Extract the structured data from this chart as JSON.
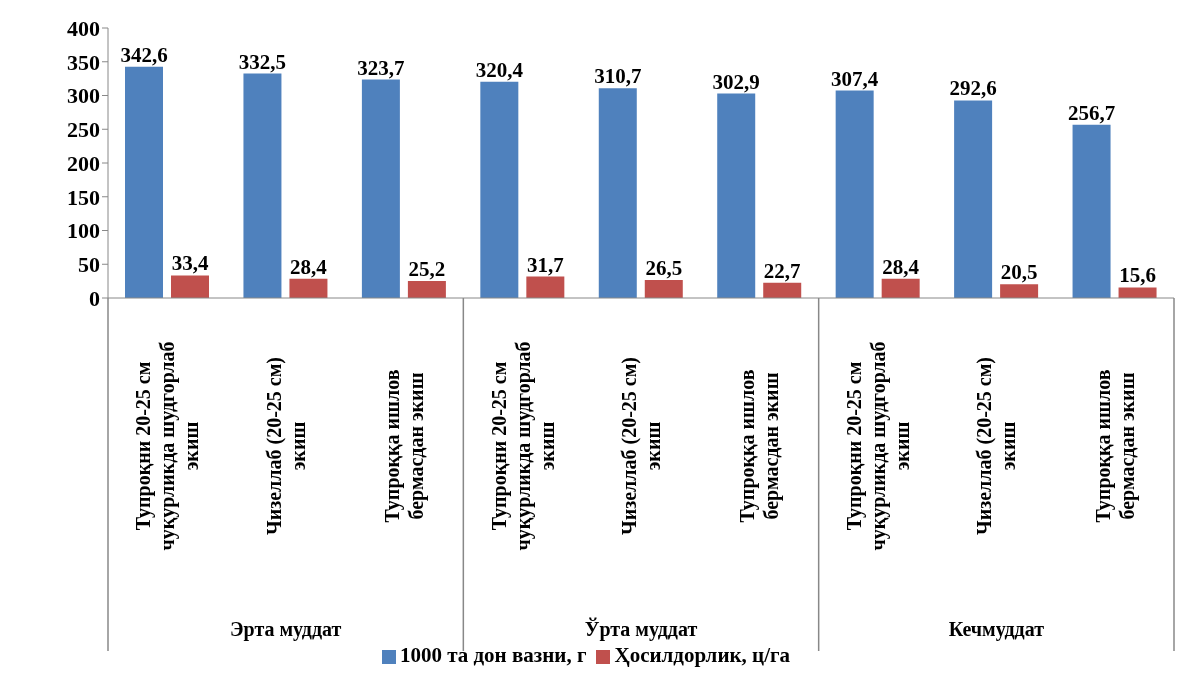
{
  "chart_data": {
    "type": "bar",
    "categories": [
      "Тупроқни 20-25 см чуқурликда шудгорлаб экиш",
      "Чизеллаб (20-25 см) экиш",
      "Тупроққа ишлов бермасдан экиш",
      "Тупроқни 20-25 см чуқурликда шудгорлаб экиш",
      "Чизеллаб (20-25 см) экиш",
      "Тупроққа ишлов бермасдан экиш",
      "Тупроқни 20-25 см чуқурликда шудгорлаб экиш",
      "Чизеллаб (20-25 см) экиш",
      "Тупроққа ишлов бермасдан экиш"
    ],
    "series": [
      {
        "name": "1000 та дон вазни, г",
        "color": "#4f81bd",
        "values": [
          342.6,
          332.5,
          323.7,
          320.4,
          310.7,
          302.9,
          307.4,
          292.6,
          256.7
        ],
        "value_labels": [
          "342,6",
          "332,5",
          "323,7",
          "320,4",
          "310,7",
          "302,9",
          "307,4",
          "292,6",
          "256,7"
        ]
      },
      {
        "name": "Ҳосилдорлик, ц/га",
        "color": "#c0504d",
        "values": [
          33.4,
          28.4,
          25.2,
          31.7,
          26.5,
          22.7,
          28.4,
          20.5,
          15.6
        ],
        "value_labels": [
          "33,4",
          "28,4",
          "25,2",
          "31,7",
          "26,5",
          "22,7",
          "28,4",
          "20,5",
          "15,6"
        ]
      }
    ],
    "annotations": [
      "Эрта муддат",
      "Ўрта муддат",
      "Кечмуддат"
    ],
    "ylim": [
      0,
      400
    ],
    "yticks": [
      0,
      50,
      100,
      150,
      200,
      250,
      300,
      350,
      400
    ],
    "grid": false,
    "legend": "bottom"
  }
}
